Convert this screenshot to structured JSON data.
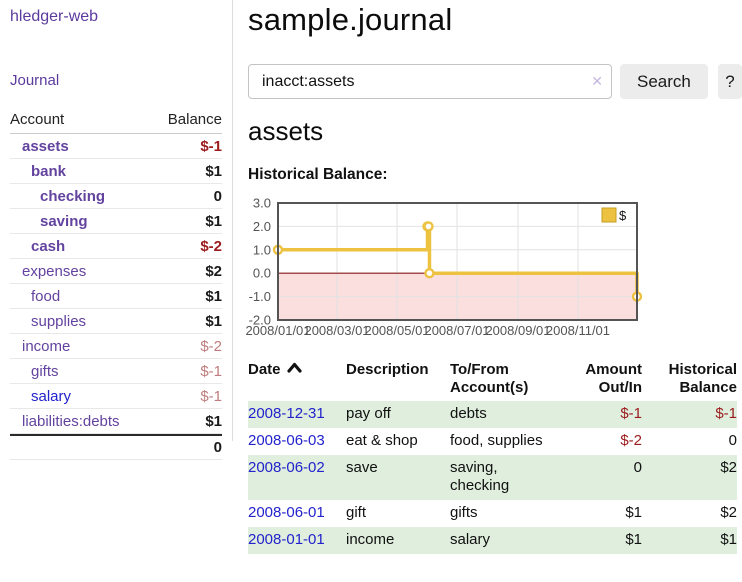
{
  "colors": {
    "link_purple": "#5b3a9e",
    "account_purple": "#63439f",
    "link_blue": "#2322cc",
    "negative_strong": "#9c1b1d",
    "negative_faded": "#bf7c7e",
    "row_stripe_green": "#dfeedd",
    "chart_gold": "#edc240",
    "chart_negative_region": "#fbdede",
    "chart_zero_line": "#8b1a1a",
    "chart_border": "#545454"
  },
  "sidebar": {
    "brand": "hledger-web",
    "journal_link": "Journal",
    "accounts_table": {
      "account_header": "Account",
      "balance_header": "Balance",
      "rows": [
        {
          "name": "assets",
          "balance": "$-1",
          "level": 1,
          "emph": true,
          "muted": false,
          "link_style": "purple"
        },
        {
          "name": "bank",
          "balance": "$1",
          "level": 2,
          "emph": true,
          "muted": false,
          "link_style": "purple"
        },
        {
          "name": "checking",
          "balance": "0",
          "level": 3,
          "emph": true,
          "muted": false,
          "link_style": "purple"
        },
        {
          "name": "saving",
          "balance": "$1",
          "level": 3,
          "emph": true,
          "muted": false,
          "link_style": "purple"
        },
        {
          "name": "cash",
          "balance": "$-2",
          "level": 2,
          "emph": true,
          "muted": false,
          "link_style": "purple"
        },
        {
          "name": "expenses",
          "balance": "$2",
          "level": 1,
          "emph": false,
          "muted": false,
          "link_style": "purple"
        },
        {
          "name": "food",
          "balance": "$1",
          "level": 2,
          "emph": false,
          "muted": false,
          "link_style": "purple"
        },
        {
          "name": "supplies",
          "balance": "$1",
          "level": 2,
          "emph": false,
          "muted": false,
          "link_style": "purple"
        },
        {
          "name": "income",
          "balance": "$-2",
          "level": 1,
          "emph": false,
          "muted": true,
          "link_style": "purple"
        },
        {
          "name": "gifts",
          "balance": "$-1",
          "level": 2,
          "emph": false,
          "muted": true,
          "link_style": "purple"
        },
        {
          "name": "salary",
          "balance": "$-1",
          "level": 2,
          "emph": false,
          "muted": true,
          "link_style": "blue"
        },
        {
          "name": "liabilities:debts",
          "balance": "$1",
          "level": 1,
          "emph": false,
          "muted": false,
          "link_style": "purple"
        }
      ],
      "total": "0"
    }
  },
  "main": {
    "title": "sample.journal",
    "search": {
      "value": "inacct:assets",
      "clear_label": "✕",
      "search_button": "Search",
      "help_button": "?"
    },
    "account_heading": "assets",
    "chart_title": "Historical Balance:"
  },
  "chart_data": {
    "type": "line",
    "step": true,
    "title": "Historical Balance:",
    "series": [
      {
        "name": "$",
        "color": "#edc240",
        "points": [
          {
            "date": "2008-01-01",
            "value": 1
          },
          {
            "date": "2008-06-01",
            "value": 2
          },
          {
            "date": "2008-06-02",
            "value": 2
          },
          {
            "date": "2008-06-03",
            "value": 0
          },
          {
            "date": "2008-12-31",
            "value": -1
          }
        ]
      }
    ],
    "xlim": [
      "2008-01-01",
      "2008-12-31"
    ],
    "ylim": [
      -2,
      3
    ],
    "yticks": [
      {
        "v": 3,
        "label": "3.0"
      },
      {
        "v": 2,
        "label": "2.0"
      },
      {
        "v": 1,
        "label": "1.0"
      },
      {
        "v": 0,
        "label": "0.0"
      },
      {
        "v": -1,
        "label": "-1.0"
      },
      {
        "v": -2,
        "label": "-2.0"
      }
    ],
    "xticks": [
      {
        "date": "2008-01-01",
        "label": "2008/01/01"
      },
      {
        "date": "2008-03-01",
        "label": "2008/03/01"
      },
      {
        "date": "2008-05-01",
        "label": "2008/05/01"
      },
      {
        "date": "2008-07-01",
        "label": "2008/07/01"
      },
      {
        "date": "2008-09-01",
        "label": "2008/09/01"
      },
      {
        "date": "2008-11-01",
        "label": "2008/11/01"
      }
    ],
    "legend": {
      "position": "top-right",
      "entries": [
        {
          "label": "$",
          "color": "#edc240"
        }
      ]
    },
    "grid": true,
    "negative_region_color": "#fbdede",
    "zero_line_color": "#8b1a1a",
    "border_color": "#545454",
    "tick_label_color": "#545454"
  },
  "register": {
    "columns": [
      {
        "key": "date",
        "label": "Date",
        "align": "left",
        "sorted": "ascending"
      },
      {
        "key": "description",
        "label": "Description",
        "align": "left"
      },
      {
        "key": "accounts",
        "label": "To/From\nAccount(s)",
        "align": "left"
      },
      {
        "key": "amount",
        "label": "Amount\nOut/In",
        "align": "right"
      },
      {
        "key": "balance",
        "label": "Historical\nBalance",
        "align": "right"
      }
    ],
    "rows": [
      {
        "date": "2008-12-31",
        "description": "pay off",
        "accounts": "debts",
        "amount": "$-1",
        "balance": "$-1"
      },
      {
        "date": "2008-06-03",
        "description": "eat & shop",
        "accounts": "food, supplies",
        "amount": "$-2",
        "balance": "0"
      },
      {
        "date": "2008-06-02",
        "description": "save",
        "accounts": "saving, checking",
        "amount": "0",
        "balance": "$2"
      },
      {
        "date": "2008-06-01",
        "description": "gift",
        "accounts": "gifts",
        "amount": "$1",
        "balance": "$2"
      },
      {
        "date": "2008-01-01",
        "description": "income",
        "accounts": "salary",
        "amount": "$1",
        "balance": "$1"
      }
    ]
  }
}
